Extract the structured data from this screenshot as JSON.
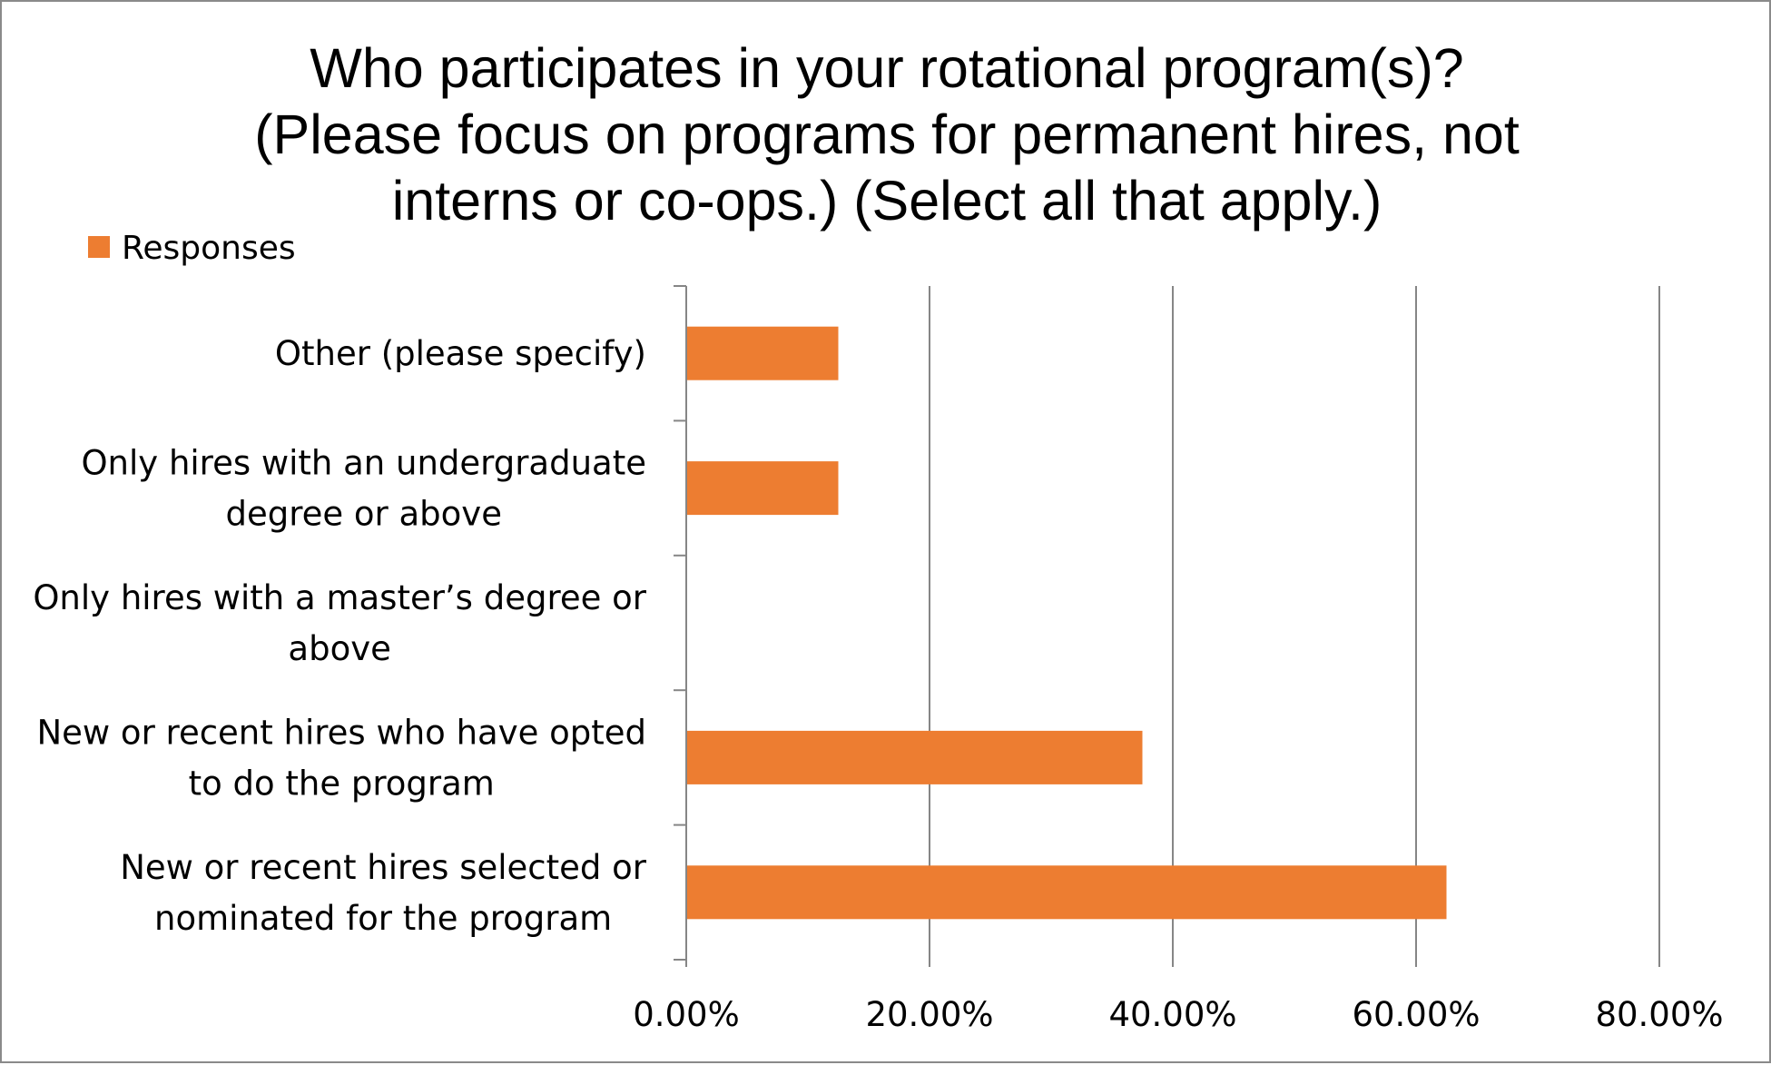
{
  "chart_data": {
    "type": "bar",
    "orientation": "horizontal",
    "title_lines": [
      "Who participates in your rotational program(s)?",
      "(Please focus on programs for permanent hires, not",
      "interns or co-ops.) (Select all that apply.)"
    ],
    "legend": {
      "position": "top-left",
      "entries": [
        "Responses"
      ]
    },
    "categories": [
      "Other (please specify)",
      "Only hires with an undergraduate degree or above",
      "Only hires with a master’s degree or above",
      "New or recent hires who have opted to do the program",
      "New or recent hires selected or nominated for the program"
    ],
    "category_label_lines": [
      [
        "Other (please specify)"
      ],
      [
        "Only hires with an undergraduate",
        "degree or above"
      ],
      [
        "Only hires with a master’s degree or",
        "above"
      ],
      [
        "New or recent hires who have opted",
        "to do the program"
      ],
      [
        "New or recent hires selected or",
        "nominated for the program"
      ]
    ],
    "series": [
      {
        "name": "Responses",
        "values": [
          0.125,
          0.125,
          0,
          0.375,
          0.625
        ]
      }
    ],
    "x_ticks": [
      "0.00%",
      "20.00%",
      "40.00%",
      "60.00%",
      "80.00%"
    ],
    "xlim": [
      0,
      0.8
    ],
    "grid": "vertical",
    "colors": {
      "bar": "#ed7d31",
      "grid": "#868686",
      "axis": "#868686"
    }
  }
}
